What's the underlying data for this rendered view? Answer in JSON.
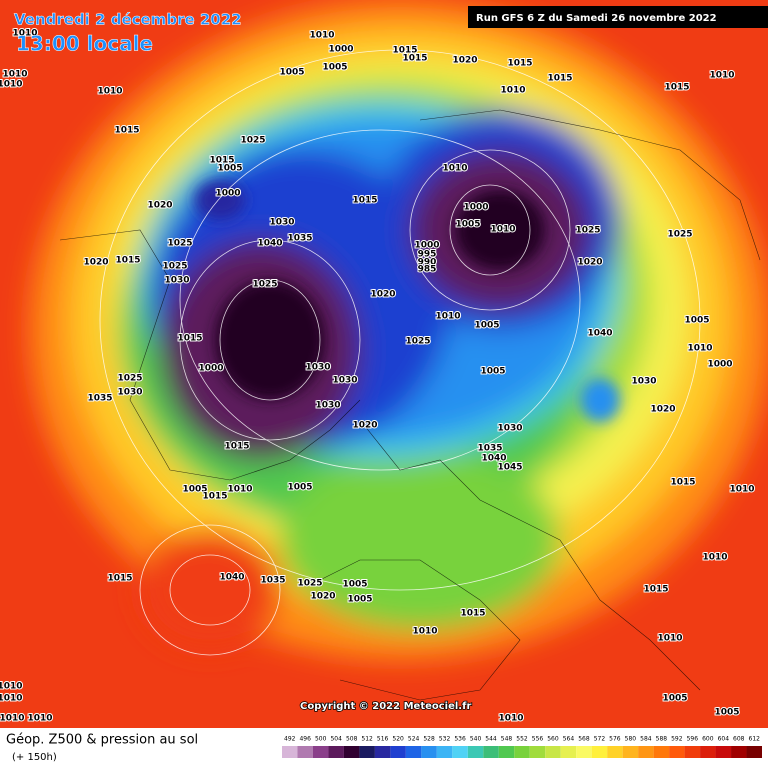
{
  "header": {
    "date": "Vendredi 2 décembre 2022",
    "time": "13:00 locale",
    "run": "Run GFS 6 Z du Samedi 26 novembre 2022"
  },
  "copyright": "Copyright © 2022 Meteociel.fr",
  "footer": {
    "title": "Géop. Z500 & pression au sol",
    "lead": "(+ 150h)"
  },
  "isobar_labels": [
    1010,
    1010,
    1010,
    1010,
    1015,
    1010,
    1000,
    1005,
    1005,
    1015,
    1015,
    1020,
    1015,
    1015,
    1010,
    1010,
    1015,
    1025,
    1015,
    1005,
    1000,
    1020,
    1030,
    1040,
    1035,
    1015,
    1010,
    1000,
    1005,
    1010,
    1025,
    1025,
    1025,
    1015,
    1020,
    1025,
    1030,
    1025,
    1020,
    1000,
    995,
    990,
    985,
    1020,
    1010,
    1005,
    1015,
    1000,
    1025,
    1040,
    1005,
    1010,
    1000,
    1030,
    1030,
    1030,
    1005,
    1030,
    1025,
    1030,
    1035,
    1020,
    1030,
    1020,
    1015,
    1035,
    1040,
    1045,
    1005,
    1015,
    1010,
    1005,
    1015,
    1010,
    1015,
    1040,
    1035,
    1025,
    1005,
    1020,
    1005,
    1015,
    1010,
    1015,
    1010,
    1010,
    1010,
    1010,
    1010,
    1010,
    1010,
    1005,
    1005
  ],
  "legend": {
    "values": [
      492,
      496,
      500,
      504,
      508,
      512,
      516,
      520,
      524,
      528,
      532,
      536,
      540,
      544,
      548,
      552,
      556,
      560,
      564,
      568,
      572,
      576,
      580,
      584,
      588,
      592,
      596,
      600,
      604,
      608,
      612
    ],
    "colors": [
      "#d7b5d8",
      "#b07ab0",
      "#8a3f8a",
      "#5c1a5c",
      "#300030",
      "#1a1a60",
      "#2828a0",
      "#1f3fd0",
      "#1e64e6",
      "#2890f0",
      "#3cb4f5",
      "#50d2f5",
      "#3cc8b4",
      "#3cbe78",
      "#50c850",
      "#78d23c",
      "#a0dc3c",
      "#c8e646",
      "#e6f050",
      "#fafa64",
      "#fff03c",
      "#ffd228",
      "#ffb41e",
      "#ff9614",
      "#ff780a",
      "#ff5a0a",
      "#f03c0a",
      "#dc1e0a",
      "#c80a0a",
      "#a00000",
      "#780000"
    ]
  }
}
